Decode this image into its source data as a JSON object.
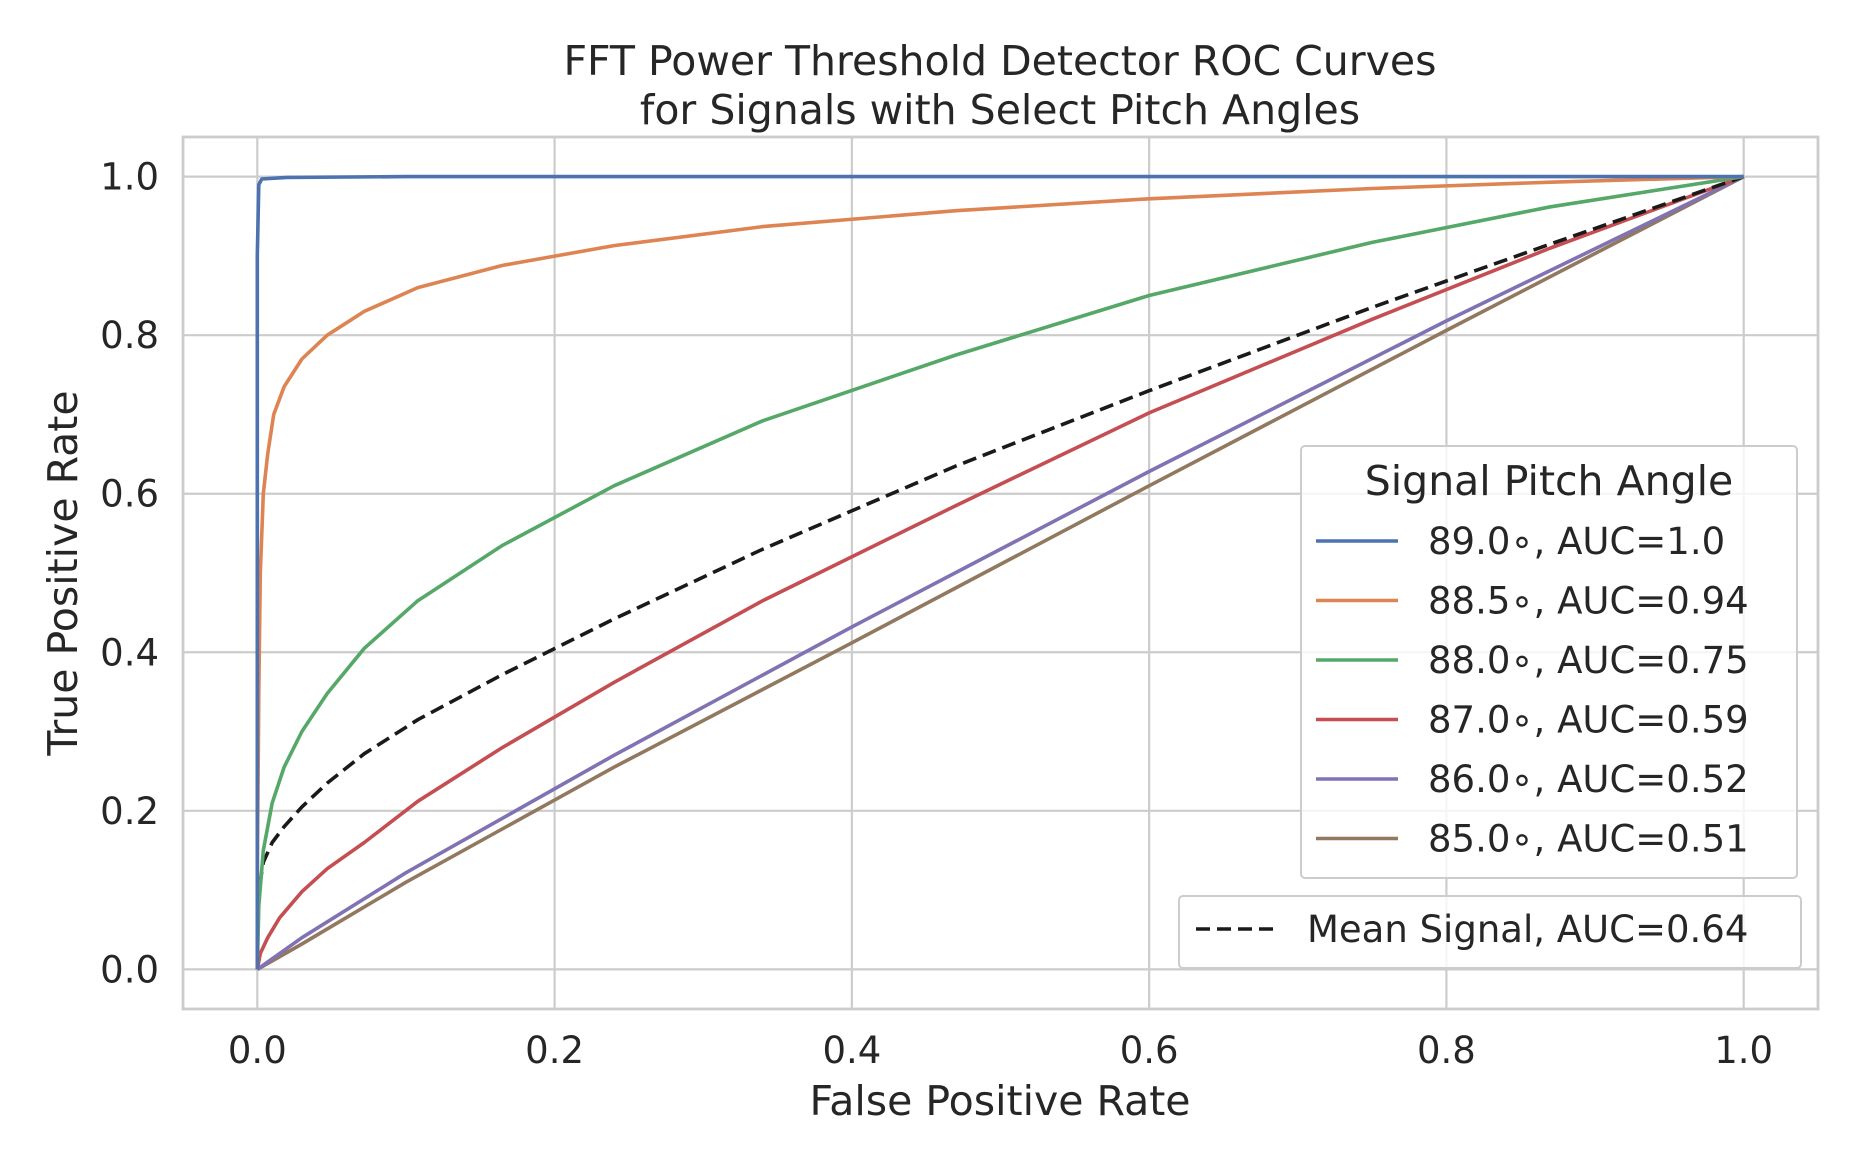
{
  "chart_data": {
    "type": "line",
    "title": [
      "FFT Power Threshold Detector ROC Curves",
      "for Signals with Select Pitch Angles"
    ],
    "xlabel": "False Positive Rate",
    "ylabel": "True Positive Rate",
    "xlim": [
      -0.05,
      1.05
    ],
    "ylim": [
      -0.05,
      1.05
    ],
    "xticks": [
      0.0,
      0.2,
      0.4,
      0.6,
      0.8,
      1.0
    ],
    "xtick_labels": [
      "0.0",
      "0.2",
      "0.4",
      "0.6",
      "0.8",
      "1.0"
    ],
    "yticks": [
      0.0,
      0.2,
      0.4,
      0.6,
      0.8,
      1.0
    ],
    "ytick_labels": [
      "0.0",
      "0.2",
      "0.4",
      "0.6",
      "0.8",
      "1.0"
    ],
    "grid": true,
    "legend": {
      "title": "Signal Pitch Angle",
      "placement": "right",
      "entries": [
        "89.0$^\\circ$, AUC=1.0",
        "88.5$^\\circ$, AUC=0.94",
        "88.0$^\\circ$, AUC=0.75",
        "87.0$^\\circ$, AUC=0.59",
        "86.0$^\\circ$, AUC=0.52",
        "85.0$^\\circ$, AUC=0.51"
      ],
      "display_entries": [
        "89.0∘, AUC=1.0",
        "88.5∘, AUC=0.94",
        "88.0∘, AUC=0.75",
        "87.0∘, AUC=0.59",
        "86.0∘, AUC=0.52",
        "85.0∘, AUC=0.51"
      ]
    },
    "mean_legend": {
      "label": "Mean Signal, AUC=0.64",
      "placement": "lower right"
    },
    "series": [
      {
        "name": "89.0∘, AUC=1.0",
        "color": "#4c72b0",
        "style": "solid",
        "points": [
          [
            0,
            0
          ],
          [
            0,
            0.5
          ],
          [
            0,
            0.9
          ],
          [
            0.001,
            0.99
          ],
          [
            0.003,
            0.997
          ],
          [
            0.02,
            0.999
          ],
          [
            0.1,
            1.0
          ],
          [
            0.5,
            1.0
          ],
          [
            1,
            1
          ]
        ]
      },
      {
        "name": "88.5∘, AUC=0.94",
        "color": "#dd8452",
        "style": "solid",
        "points": [
          [
            0,
            0
          ],
          [
            0,
            0.12
          ],
          [
            0.001,
            0.35
          ],
          [
            0.002,
            0.5
          ],
          [
            0.004,
            0.6
          ],
          [
            0.007,
            0.65
          ],
          [
            0.011,
            0.7
          ],
          [
            0.018,
            0.735
          ],
          [
            0.03,
            0.77
          ],
          [
            0.047,
            0.8
          ],
          [
            0.072,
            0.83
          ],
          [
            0.108,
            0.86
          ],
          [
            0.165,
            0.888
          ],
          [
            0.24,
            0.913
          ],
          [
            0.34,
            0.937
          ],
          [
            0.47,
            0.957
          ],
          [
            0.6,
            0.972
          ],
          [
            0.75,
            0.985
          ],
          [
            0.87,
            0.993
          ],
          [
            1,
            1
          ]
        ]
      },
      {
        "name": "88.0∘, AUC=0.75",
        "color": "#55a868",
        "style": "solid",
        "points": [
          [
            0,
            0
          ],
          [
            0.001,
            0.08
          ],
          [
            0.004,
            0.15
          ],
          [
            0.01,
            0.21
          ],
          [
            0.018,
            0.255
          ],
          [
            0.03,
            0.3
          ],
          [
            0.047,
            0.348
          ],
          [
            0.072,
            0.405
          ],
          [
            0.108,
            0.465
          ],
          [
            0.165,
            0.535
          ],
          [
            0.24,
            0.61
          ],
          [
            0.34,
            0.692
          ],
          [
            0.47,
            0.775
          ],
          [
            0.6,
            0.85
          ],
          [
            0.75,
            0.917
          ],
          [
            0.87,
            0.962
          ],
          [
            1,
            1
          ]
        ]
      },
      {
        "name": "87.0∘, AUC=0.59",
        "color": "#c44e52",
        "style": "solid",
        "points": [
          [
            0,
            0
          ],
          [
            0.002,
            0.02
          ],
          [
            0.007,
            0.04
          ],
          [
            0.015,
            0.065
          ],
          [
            0.03,
            0.098
          ],
          [
            0.047,
            0.127
          ],
          [
            0.072,
            0.16
          ],
          [
            0.108,
            0.212
          ],
          [
            0.165,
            0.28
          ],
          [
            0.24,
            0.362
          ],
          [
            0.34,
            0.465
          ],
          [
            0.47,
            0.585
          ],
          [
            0.6,
            0.702
          ],
          [
            0.75,
            0.82
          ],
          [
            0.87,
            0.91
          ],
          [
            1,
            1
          ]
        ]
      },
      {
        "name": "86.0∘, AUC=0.52",
        "color": "#8172b3",
        "style": "solid",
        "points": [
          [
            0,
            0
          ],
          [
            0.03,
            0.04
          ],
          [
            0.1,
            0.122
          ],
          [
            0.24,
            0.27
          ],
          [
            0.4,
            0.432
          ],
          [
            0.6,
            0.628
          ],
          [
            0.8,
            0.818
          ],
          [
            1,
            1
          ]
        ]
      },
      {
        "name": "85.0∘, AUC=0.51",
        "color": "#937860",
        "style": "solid",
        "points": [
          [
            0,
            0
          ],
          [
            0.03,
            0.032
          ],
          [
            0.1,
            0.11
          ],
          [
            0.24,
            0.255
          ],
          [
            0.4,
            0.412
          ],
          [
            0.6,
            0.61
          ],
          [
            0.8,
            0.806
          ],
          [
            1,
            1
          ]
        ]
      },
      {
        "name": "Mean Signal, AUC=0.64",
        "color": "#1a1a1a",
        "style": "dashed",
        "points": [
          [
            0,
            0
          ],
          [
            0,
            0.05
          ],
          [
            0.001,
            0.1
          ],
          [
            0.004,
            0.135
          ],
          [
            0.01,
            0.16
          ],
          [
            0.018,
            0.18
          ],
          [
            0.03,
            0.205
          ],
          [
            0.047,
            0.235
          ],
          [
            0.072,
            0.272
          ],
          [
            0.108,
            0.315
          ],
          [
            0.165,
            0.372
          ],
          [
            0.24,
            0.442
          ],
          [
            0.34,
            0.53
          ],
          [
            0.47,
            0.635
          ],
          [
            0.6,
            0.73
          ],
          [
            0.75,
            0.835
          ],
          [
            0.87,
            0.915
          ],
          [
            1,
            1
          ]
        ]
      }
    ]
  }
}
